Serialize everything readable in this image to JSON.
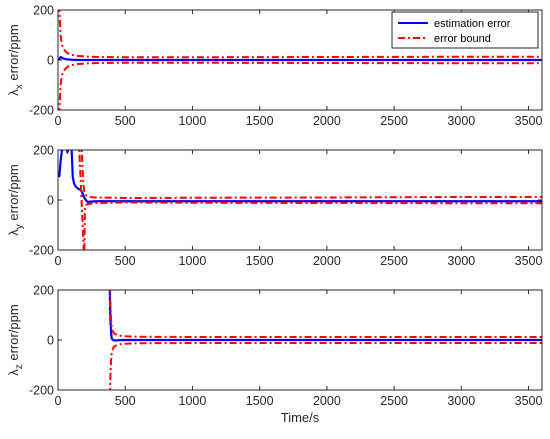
{
  "colors": {
    "estimation": "#0000ff",
    "bound": "#ff0000",
    "axis": "#262626"
  },
  "chart_data": [
    {
      "type": "line",
      "ylabel_main": "λ",
      "ylabel_sub": "x",
      "ylabel_rest": " error/ppm",
      "xlabel": "",
      "xlim": [
        0,
        3600
      ],
      "ylim": [
        -200,
        200
      ],
      "x_ticks": [
        "0",
        "500",
        "1000",
        "1500",
        "2000",
        "2500",
        "3000",
        "3500"
      ],
      "y_ticks": [
        "200",
        "0",
        "-200"
      ],
      "legend": {
        "position": "top-right",
        "entries": [
          "estimation error",
          "error bound"
        ]
      },
      "series": [
        {
          "name": "estimation error",
          "style": "solid",
          "x": [
            0,
            10,
            20,
            30,
            40,
            60,
            80,
            100,
            150,
            200,
            300,
            500,
            1000,
            2000,
            3000,
            3600
          ],
          "y": [
            0,
            5,
            12,
            8,
            6,
            3,
            2,
            1,
            0,
            0,
            0,
            0,
            0,
            0,
            0,
            0
          ]
        },
        {
          "name": "error bound",
          "style": "dashdot",
          "x": [
            0,
            5,
            10,
            20,
            30,
            40,
            60,
            80,
            100,
            150,
            200,
            300,
            500,
            1000,
            2000,
            3000,
            3600
          ],
          "y": [
            400,
            300,
            200,
            95,
            60,
            45,
            32,
            25,
            21,
            16,
            14,
            12,
            11,
            11,
            12,
            13,
            13
          ]
        },
        {
          "style": "dashdot",
          "x": [
            0,
            5,
            10,
            20,
            30,
            40,
            60,
            80,
            100,
            150,
            200,
            300,
            500,
            1000,
            2000,
            3000,
            3600
          ],
          "y": [
            -400,
            -300,
            -200,
            -95,
            -60,
            -45,
            -32,
            -25,
            -21,
            -16,
            -14,
            -12,
            -11,
            -11,
            -12,
            -13,
            -13
          ]
        }
      ]
    },
    {
      "type": "line",
      "ylabel_main": "λ",
      "ylabel_sub": "y",
      "ylabel_rest": " error/ppm",
      "xlabel": "",
      "xlim": [
        0,
        3600
      ],
      "ylim": [
        -200,
        200
      ],
      "x_ticks": [
        "0",
        "500",
        "1000",
        "1500",
        "2000",
        "2500",
        "3000",
        "3500"
      ],
      "y_ticks": [
        "200",
        "0",
        "-200"
      ],
      "series": [
        {
          "name": "estimation error",
          "style": "solid",
          "x": [
            0,
            10,
            20,
            30,
            40,
            50,
            60,
            70,
            80,
            90,
            100,
            110,
            120,
            130,
            150,
            170,
            180,
            190,
            200,
            220,
            250,
            300,
            500,
            1000,
            2000,
            3000,
            3600
          ],
          "y": [
            100,
            95,
            160,
            200,
            230,
            280,
            230,
            190,
            210,
            250,
            220,
            90,
            65,
            55,
            45,
            40,
            30,
            15,
            5,
            -8,
            -6,
            -5,
            -5,
            -5,
            -5,
            -5,
            -5
          ]
        },
        {
          "style": "dashdot",
          "x": [
            170,
            175,
            180,
            185,
            190,
            195,
            200,
            210,
            220,
            250,
            300,
            400,
            500,
            1000,
            2000,
            3000,
            3600
          ],
          "y": [
            300,
            220,
            160,
            100,
            60,
            35,
            25,
            18,
            15,
            11,
            10,
            9,
            8,
            9,
            10,
            12,
            12
          ]
        },
        {
          "style": "dashdot",
          "x": [
            150,
            155,
            160,
            165,
            170,
            175,
            180,
            185,
            190,
            195,
            200,
            210,
            220,
            250,
            300,
            400,
            500,
            1000,
            2000,
            3000,
            3600
          ],
          "y": [
            300,
            240,
            180,
            120,
            60,
            0,
            -60,
            -120,
            -180,
            -250,
            -30,
            -20,
            -17,
            -14,
            -12,
            -11,
            -10,
            -11,
            -12,
            -13,
            -13
          ]
        }
      ]
    },
    {
      "type": "line",
      "ylabel_main": "λ",
      "ylabel_sub": "z",
      "ylabel_rest": " error/ppm",
      "xlabel": "Time/s",
      "xlim": [
        0,
        3600
      ],
      "ylim": [
        -200,
        200
      ],
      "x_ticks": [
        "0",
        "500",
        "1000",
        "1500",
        "2000",
        "2500",
        "3000",
        "3500"
      ],
      "y_ticks": [
        "200",
        "0",
        "-200"
      ],
      "series": [
        {
          "name": "estimation error",
          "style": "solid",
          "x": [
            380,
            385,
            390,
            395,
            400,
            410,
            420,
            450,
            500,
            1000,
            2000,
            3000,
            3600
          ],
          "y": [
            400,
            200,
            80,
            30,
            5,
            0,
            -2,
            -1,
            0,
            0,
            0,
            0,
            0
          ]
        },
        {
          "style": "dashdot",
          "x": [
            380,
            385,
            390,
            395,
            400,
            410,
            420,
            450,
            500,
            600,
            1000,
            2000,
            3000,
            3600
          ],
          "y": [
            400,
            260,
            140,
            80,
            50,
            32,
            25,
            18,
            15,
            13,
            12,
            12,
            12,
            12
          ]
        },
        {
          "style": "dashdot",
          "x": [
            380,
            385,
            390,
            395,
            400,
            410,
            420,
            450,
            500,
            600,
            1000,
            2000,
            3000,
            3600
          ],
          "y": [
            -400,
            -260,
            -140,
            -80,
            -50,
            -32,
            -25,
            -18,
            -15,
            -13,
            -12,
            -12,
            -12,
            -12
          ]
        }
      ]
    }
  ]
}
